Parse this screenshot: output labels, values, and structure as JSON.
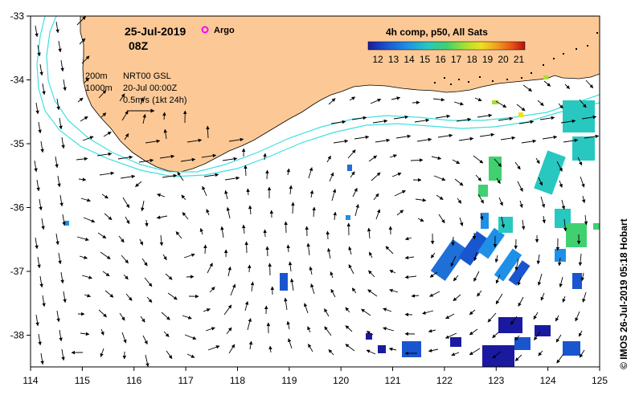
{
  "map": {
    "date": "25-Jul-2019",
    "hour": "08Z",
    "argo_label": "Argo",
    "contours": [
      "200m",
      "1000m"
    ],
    "source": "NRT00 GSL",
    "source_date": "20-Jul 00:00Z",
    "scale_label": "0.5m/s (1kt 24h)",
    "colorbar_title": "4h comp, p50, All Sats",
    "colorbar_ticks": [
      "12",
      "13",
      "14",
      "15",
      "16",
      "17",
      "18",
      "19",
      "20",
      "21"
    ],
    "colorbar_colors": [
      "#1a1aa0",
      "#1a55d0",
      "#1e90e8",
      "#28c8c0",
      "#40d070",
      "#a8e030",
      "#f0e020",
      "#f0a020",
      "#e85018",
      "#b01010"
    ],
    "credit": "© IMOS 26-Jul-2019 05:18 Hobart",
    "x_ticks": [
      "114",
      "115",
      "116",
      "117",
      "118",
      "119",
      "120",
      "121",
      "122",
      "123",
      "124",
      "125"
    ],
    "y_ticks": [
      "-33",
      "-34",
      "-35",
      "-36",
      "-37",
      "-38"
    ],
    "land_color": "#fcc996",
    "contour_color": "#40e0e0",
    "argo_color": "#ff00ff"
  }
}
